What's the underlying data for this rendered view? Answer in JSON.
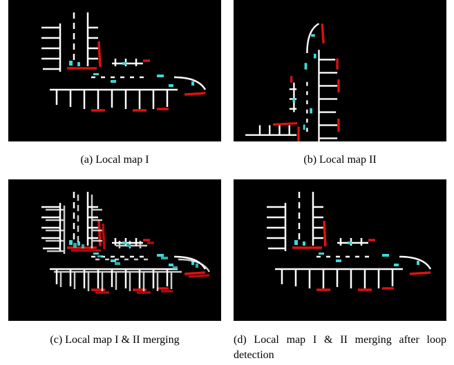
{
  "subfigures": [
    {
      "caption": "(a) Local map I"
    },
    {
      "caption": "(b) Local map II"
    },
    {
      "caption": "(c) Local map I & II merging"
    },
    {
      "caption": "(d) Local map I & II merging after loop detection"
    }
  ]
}
